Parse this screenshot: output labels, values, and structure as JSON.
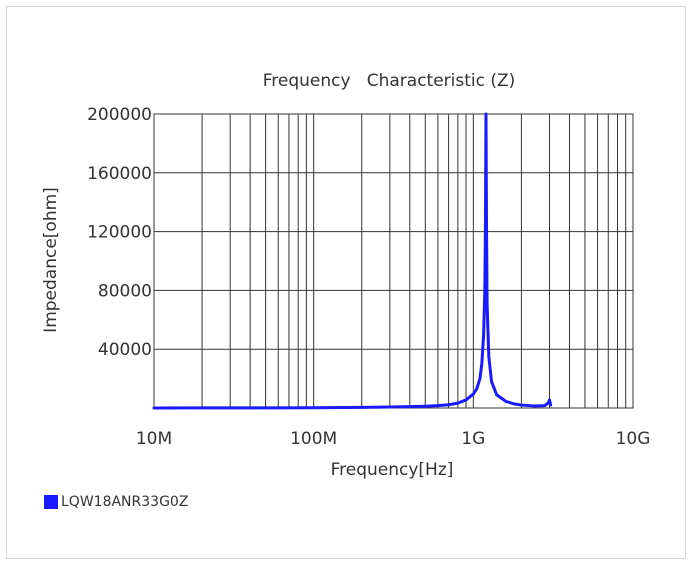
{
  "chart_data": {
    "type": "line",
    "title": "Frequency   Characteristic (Z)",
    "xlabel": "Frequency[Hz]",
    "ylabel": "Impedance[ohm]",
    "x_scale": "log",
    "xlim": [
      10000000,
      10000000000
    ],
    "ylim": [
      0,
      200000
    ],
    "x_ticks": [
      {
        "value": 10000000,
        "label": "10M"
      },
      {
        "value": 100000000,
        "label": "100M"
      },
      {
        "value": 1000000000,
        "label": "1G"
      },
      {
        "value": 10000000000,
        "label": "10G"
      }
    ],
    "y_ticks": [
      {
        "value": 40000,
        "label": "40000"
      },
      {
        "value": 80000,
        "label": "80000"
      },
      {
        "value": 120000,
        "label": "120000"
      },
      {
        "value": 160000,
        "label": "160000"
      },
      {
        "value": 200000,
        "label": "200000"
      }
    ],
    "grid": true,
    "legend_position": "bottom-left",
    "series": [
      {
        "name": "LQW18ANR33G0Z",
        "color": "#1a1aff",
        "points": [
          [
            10000000,
            20
          ],
          [
            20000000,
            45
          ],
          [
            50000000,
            105
          ],
          [
            100000000,
            210
          ],
          [
            200000000,
            430
          ],
          [
            300000000,
            660
          ],
          [
            400000000,
            900
          ],
          [
            500000000,
            1200
          ],
          [
            600000000,
            1600
          ],
          [
            700000000,
            2200
          ],
          [
            800000000,
            3300
          ],
          [
            900000000,
            5500
          ],
          [
            1000000000,
            9500
          ],
          [
            1050000000,
            13000
          ],
          [
            1100000000,
            20000
          ],
          [
            1130000000,
            30000
          ],
          [
            1160000000,
            50000
          ],
          [
            1180000000,
            80000
          ],
          [
            1190000000,
            120000
          ],
          [
            1200000000,
            200000
          ],
          [
            1210000000,
            120000
          ],
          [
            1220000000,
            70000
          ],
          [
            1250000000,
            35000
          ],
          [
            1300000000,
            18000
          ],
          [
            1400000000,
            9000
          ],
          [
            1600000000,
            4500
          ],
          [
            1800000000,
            2800
          ],
          [
            2000000000,
            2000
          ],
          [
            2400000000,
            1400
          ],
          [
            2800000000,
            1600
          ],
          [
            2950000000,
            3500
          ],
          [
            3000000000,
            5500
          ],
          [
            3050000000,
            2000
          ]
        ]
      }
    ]
  }
}
